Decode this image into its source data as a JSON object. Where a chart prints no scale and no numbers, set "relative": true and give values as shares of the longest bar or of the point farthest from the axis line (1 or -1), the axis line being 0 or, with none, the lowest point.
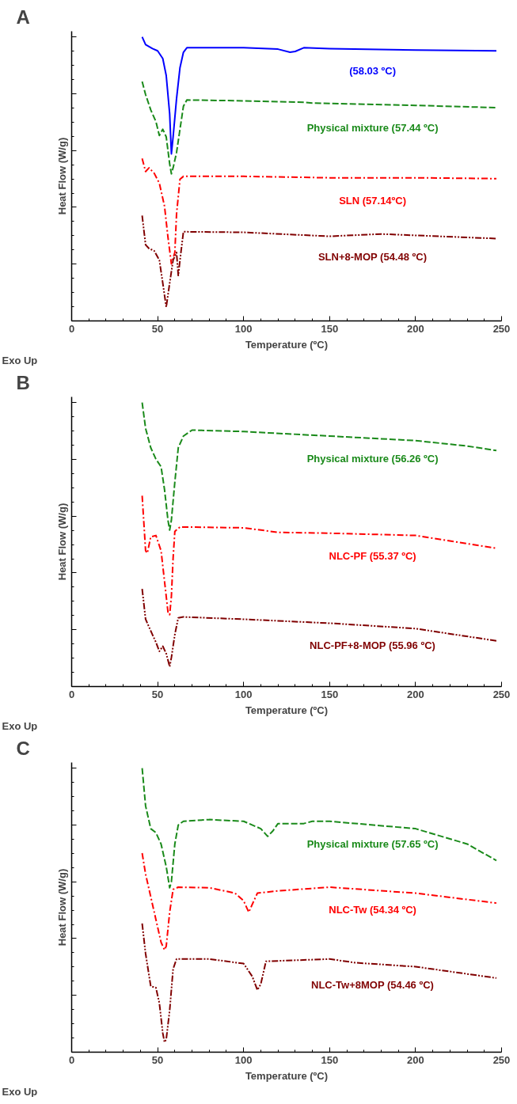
{
  "chart_data": [
    {
      "type": "line",
      "title": "A",
      "xlabel": "Temperature (ºC)",
      "ylabel": "Heat Flow (W/g)",
      "relative": true,
      "xlim": [
        0,
        250
      ],
      "xticks": [
        0,
        50,
        100,
        150,
        200,
        250
      ],
      "grid": false,
      "annotations": [
        "Exo Up"
      ],
      "series": [
        {
          "name": "(58.03 ºC)",
          "color": "#0000ff",
          "line_style": "solid",
          "x": [
            41,
            43,
            47,
            50,
            53,
            55,
            57,
            58,
            59,
            61,
            63,
            65,
            67,
            70,
            100,
            120,
            127,
            130,
            135,
            150,
            200,
            247
          ],
          "values": [
            1.0,
            0.973,
            0.959,
            0.951,
            0.924,
            0.864,
            0.729,
            0.588,
            0.648,
            0.783,
            0.892,
            0.946,
            0.962,
            0.962,
            0.962,
            0.957,
            0.946,
            0.949,
            0.962,
            0.959,
            0.954,
            0.951
          ]
        },
        {
          "name": "Physical mixture (57.44 ºC)",
          "color": "#1a8a1a",
          "line_style": "dashed",
          "x": [
            41,
            43,
            46,
            49,
            51,
            53,
            55,
            57,
            58,
            59,
            61,
            63,
            65,
            67,
            100,
            135,
            140,
            200,
            247
          ],
          "values": [
            0.843,
            0.797,
            0.743,
            0.702,
            0.653,
            0.675,
            0.648,
            0.553,
            0.518,
            0.539,
            0.593,
            0.675,
            0.756,
            0.778,
            0.775,
            0.77,
            0.767,
            0.759,
            0.751
          ]
        },
        {
          "name": "SLN (57.14ºC)",
          "color": "#ff0000",
          "line_style": "dashdot",
          "x": [
            41,
            43,
            45,
            48,
            51,
            54,
            56,
            58,
            60,
            61,
            63,
            65,
            100,
            150,
            200,
            247
          ],
          "values": [
            0.572,
            0.526,
            0.539,
            0.52,
            0.485,
            0.404,
            0.295,
            0.201,
            0.241,
            0.377,
            0.499,
            0.509,
            0.509,
            0.504,
            0.504,
            0.501
          ]
        },
        {
          "name": "SLN+8-MOP (54.48 ºC)",
          "color": "#800000",
          "line_style": "dashdotdot",
          "x": [
            41,
            43,
            45,
            48,
            51,
            53,
            55,
            57,
            59,
            61,
            62,
            63,
            65,
            100,
            150,
            180,
            247
          ],
          "values": [
            0.371,
            0.268,
            0.255,
            0.247,
            0.214,
            0.133,
            0.049,
            0.133,
            0.214,
            0.241,
            0.16,
            0.214,
            0.314,
            0.312,
            0.298,
            0.306,
            0.29
          ]
        }
      ]
    },
    {
      "type": "line",
      "title": "B",
      "xlabel": "Temperature (ºC)",
      "ylabel": "Heat Flow (W/g)",
      "relative": true,
      "xlim": [
        0,
        250
      ],
      "xticks": [
        0,
        50,
        100,
        150,
        200,
        250
      ],
      "grid": false,
      "annotations": [
        "Exo Up"
      ],
      "series": [
        {
          "name": "Physical mixture (56.26 ºC)",
          "color": "#1a8a1a",
          "line_style": "dashed",
          "x": [
            41,
            43,
            46,
            49,
            52,
            54,
            56,
            57,
            58,
            60,
            62,
            65,
            70,
            100,
            150,
            200,
            230,
            247
          ],
          "values": [
            1.0,
            0.909,
            0.841,
            0.801,
            0.774,
            0.694,
            0.586,
            0.551,
            0.586,
            0.72,
            0.841,
            0.882,
            0.903,
            0.898,
            0.882,
            0.866,
            0.847,
            0.831
          ]
        },
        {
          "name": "NLC-PF (55.37 ºC)",
          "color": "#ff0000",
          "line_style": "dashdot",
          "x": [
            41,
            43,
            44,
            46,
            49,
            52,
            54,
            56,
            57,
            58,
            59,
            60,
            63,
            100,
            120,
            150,
            200,
            247
          ],
          "values": [
            0.672,
            0.478,
            0.47,
            0.527,
            0.532,
            0.478,
            0.371,
            0.263,
            0.253,
            0.317,
            0.452,
            0.546,
            0.562,
            0.559,
            0.543,
            0.54,
            0.532,
            0.487
          ]
        },
        {
          "name": "NLC-PF+8-MOP (55.96 ºC)",
          "color": "#800000",
          "line_style": "dashdotdot",
          "x": [
            41,
            43,
            46,
            49,
            51,
            53,
            55,
            57,
            58,
            60,
            62,
            65,
            100,
            150,
            200,
            247
          ],
          "values": [
            0.344,
            0.237,
            0.196,
            0.156,
            0.124,
            0.142,
            0.116,
            0.07,
            0.102,
            0.183,
            0.242,
            0.245,
            0.237,
            0.223,
            0.204,
            0.161
          ]
        }
      ]
    },
    {
      "type": "line",
      "title": "C",
      "xlabel": "Temperature (ºC)",
      "ylabel": "Heat Flow (W/g)",
      "relative": true,
      "xlim": [
        0,
        250
      ],
      "xticks": [
        0,
        50,
        100,
        150,
        200,
        250
      ],
      "grid": false,
      "annotations": [
        "Exo Up"
      ],
      "series": [
        {
          "name": "Physical mixture (57.65 ºC)",
          "color": "#1a8a1a",
          "line_style": "dashed",
          "x": [
            41,
            43,
            46,
            49,
            52,
            55,
            57,
            58,
            60,
            62,
            65,
            80,
            100,
            110,
            114,
            117,
            120,
            135,
            140,
            150,
            200,
            230,
            247
          ],
          "values": [
            1.0,
            0.867,
            0.787,
            0.773,
            0.733,
            0.653,
            0.579,
            0.6,
            0.733,
            0.8,
            0.813,
            0.819,
            0.813,
            0.787,
            0.76,
            0.779,
            0.805,
            0.805,
            0.813,
            0.813,
            0.787,
            0.733,
            0.675
          ]
        },
        {
          "name": "NLC-Tw (54.34 ºC)",
          "color": "#ff0000",
          "line_style": "dashdot",
          "x": [
            41,
            43,
            46,
            49,
            52,
            54,
            55,
            57,
            59,
            62,
            80,
            95,
            100,
            103,
            105,
            108,
            120,
            150,
            200,
            247
          ],
          "values": [
            0.701,
            0.627,
            0.547,
            0.467,
            0.387,
            0.36,
            0.373,
            0.493,
            0.573,
            0.581,
            0.579,
            0.56,
            0.533,
            0.493,
            0.52,
            0.56,
            0.568,
            0.581,
            0.56,
            0.525
          ]
        },
        {
          "name": "NLC-Tw+8MOP (54.46 ºC)",
          "color": "#800000",
          "line_style": "dashdotdot",
          "x": [
            41,
            43,
            46,
            49,
            51,
            53,
            54,
            55,
            57,
            59,
            61,
            80,
            100,
            105,
            108,
            110,
            113,
            150,
            165,
            200,
            247
          ],
          "values": [
            0.453,
            0.347,
            0.232,
            0.227,
            0.173,
            0.067,
            0.035,
            0.045,
            0.147,
            0.293,
            0.328,
            0.328,
            0.312,
            0.267,
            0.219,
            0.24,
            0.32,
            0.328,
            0.315,
            0.301,
            0.261
          ]
        }
      ]
    }
  ]
}
